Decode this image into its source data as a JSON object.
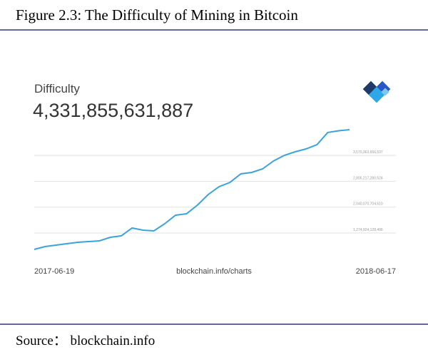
{
  "figure_title": "Figure 2.3: The Difficulty of Mining in Bitcoin",
  "source": "Source： blockchain.info",
  "chart_data": {
    "type": "line",
    "title": "Difficulty",
    "subtitle": "4,331,855,631,887",
    "annotation": "blockchain.info/charts",
    "color": "#3aa3dc",
    "categories": [
      "2017-06-19",
      null,
      null,
      null,
      null,
      null,
      null,
      null,
      null,
      null,
      null,
      null,
      null,
      null,
      null,
      null,
      null,
      null,
      null,
      null,
      null,
      null,
      null,
      null,
      null,
      null,
      null,
      null,
      null,
      "2018-06-17"
    ],
    "values": [
      790000000000,
      874000000000,
      916000000000,
      959000000000,
      1001000000000,
      1022000000000,
      1043000000000,
      1148000000000,
      1191000000000,
      1422000000000,
      1359000000000,
      1338000000000,
      1549000000000,
      1802000000000,
      1844000000000,
      2097000000000,
      2413000000000,
      2645000000000,
      2772000000000,
      3025000000000,
      3067000000000,
      3172000000000,
      3404000000000,
      3573000000000,
      3678000000000,
      3762000000000,
      3889000000000,
      4250000000000,
      4300000000000,
      4331855631887
    ],
    "ylim": [
      579000000000,
      4585000000000
    ],
    "yticks": [
      {
        "value": 1274924128496,
        "label": "1,274,924,128,496"
      },
      {
        "value": 2040070704510,
        "label": "2,040,070,704,510"
      },
      {
        "value": 2805217280524,
        "label": "2,805,217,280,524"
      },
      {
        "value": 3570363656537,
        "label": "3,570,363,656,537"
      }
    ],
    "grid": true
  }
}
